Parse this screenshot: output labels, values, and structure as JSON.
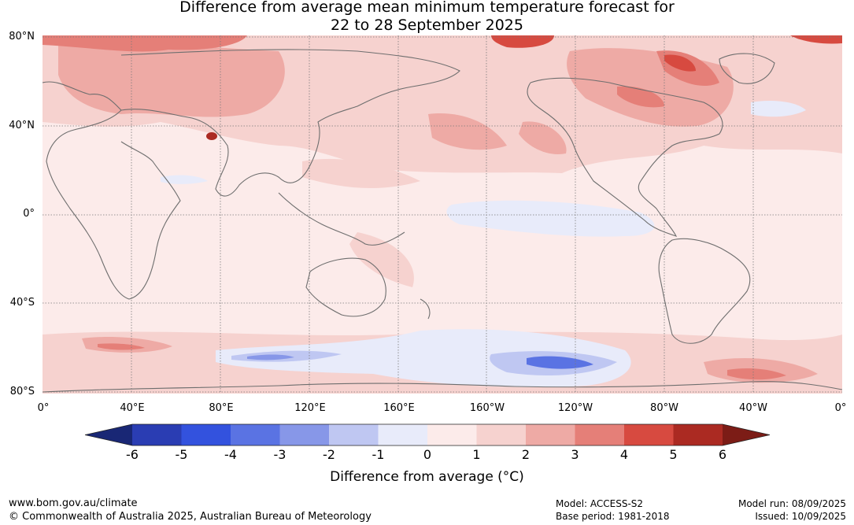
{
  "title": {
    "line1": "Difference from average mean minimum temperature forecast for",
    "line2": "22 to 28 September 2025"
  },
  "axes": {
    "lat_labels": [
      "80°N",
      "40°N",
      "0°",
      "40°S",
      "80°S"
    ],
    "lon_labels": [
      "0°",
      "40°E",
      "80°E",
      "120°E",
      "160°E",
      "160°W",
      "120°W",
      "80°W",
      "40°W",
      "0°"
    ]
  },
  "legend": {
    "title": "Difference from average (°C)",
    "tick_labels": [
      "-6",
      "-5",
      "-4",
      "-3",
      "-2",
      "-1",
      "0",
      "1",
      "2",
      "3",
      "4",
      "5",
      "6"
    ],
    "colors": [
      "#192775",
      "#2a3db3",
      "#3352de",
      "#5a73e3",
      "#8797e8",
      "#bfc7f2",
      "#e8ebfa",
      "#fcebea",
      "#f6d2cf",
      "#eeaaa5",
      "#e57f78",
      "#d74a40",
      "#ab2a22",
      "#7c1c16"
    ]
  },
  "footer": {
    "website": "www.bom.gov.au/climate",
    "copyright": "© Commonwealth of Australia 2025, Australian Bureau of Meteorology",
    "model": "Model: ACCESS-S2",
    "base_period": "Base period: 1981-2018",
    "model_run": "Model run: 08/09/2025",
    "issued": "Issued: 10/09/2025"
  }
}
